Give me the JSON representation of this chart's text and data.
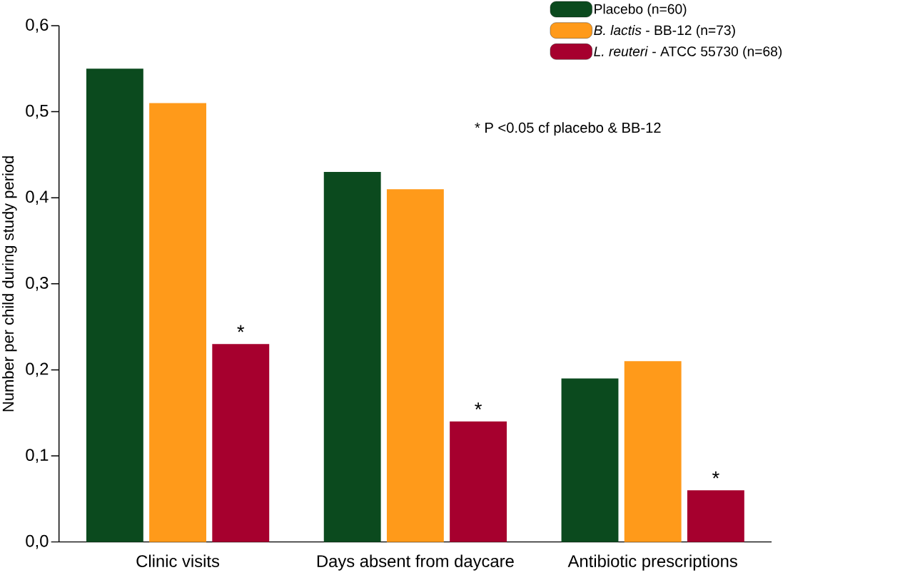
{
  "chart_data": {
    "type": "bar",
    "ylabel": "Number per child during study period",
    "categories": [
      "Clinic visits",
      "Days absent from daycare",
      "Antibiotic prescriptions"
    ],
    "series": [
      {
        "name": "Placebo (n=60)",
        "color": "#0b4a1e",
        "values": [
          0.55,
          0.43,
          0.19
        ]
      },
      {
        "name": "*B. lactis* - BB-12 (n=73)",
        "color": "#ff9a1a",
        "values": [
          0.51,
          0.41,
          0.21
        ]
      },
      {
        "name": "*L. reuteri* - ATCC 55730 (n=68)",
        "color": "#a6002e",
        "values": [
          0.23,
          0.14,
          0.06
        ],
        "value_labels": [
          "*",
          "*",
          "*"
        ]
      }
    ],
    "ylim": [
      0,
      0.6
    ],
    "yticks": [
      {
        "value": 0,
        "label": "0,0"
      },
      {
        "value": 0.1,
        "label": "0,1"
      },
      {
        "value": 0.2,
        "label": "0,2"
      },
      {
        "value": 0.3,
        "label": "0,3"
      },
      {
        "value": 0.4,
        "label": "0,4"
      },
      {
        "value": 0.5,
        "label": "0,5"
      },
      {
        "value": 0.6,
        "label": "0,6"
      }
    ],
    "legend": "top right",
    "grid": false,
    "annotations": [
      "* P <0.05 cf placebo & BB-12"
    ]
  }
}
